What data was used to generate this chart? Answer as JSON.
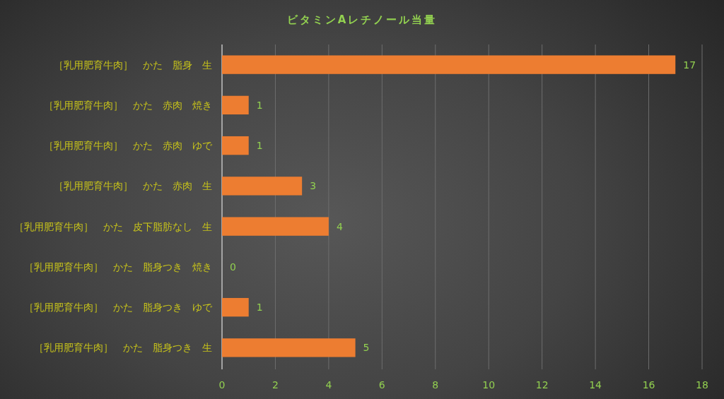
{
  "chart_data": {
    "type": "bar",
    "orientation": "horizontal",
    "title": "ビタミンAレチノール当量",
    "categories": [
      "［乳用肥育牛肉］　かた　脂身　生",
      "［乳用肥育牛肉］　かた　赤肉　焼き",
      "［乳用肥育牛肉］　かた　赤肉　ゆで",
      "［乳用肥育牛肉］　かた　赤肉　生",
      "［乳用肥育牛肉］　かた　皮下脂肪なし　生",
      "［乳用肥育牛肉］　かた　脂身つき　焼き",
      "［乳用肥育牛肉］　かた　脂身つき　ゆで",
      "［乳用肥育牛肉］　かた　脂身つき　生"
    ],
    "values": [
      17,
      1,
      1,
      3,
      4,
      0,
      1,
      5
    ],
    "color": "#ed7d31",
    "xlim": [
      0,
      18
    ],
    "xticks": [
      0,
      2,
      4,
      6,
      8,
      10,
      12,
      14,
      16,
      18
    ],
    "grid": "x",
    "data_labels": true
  }
}
